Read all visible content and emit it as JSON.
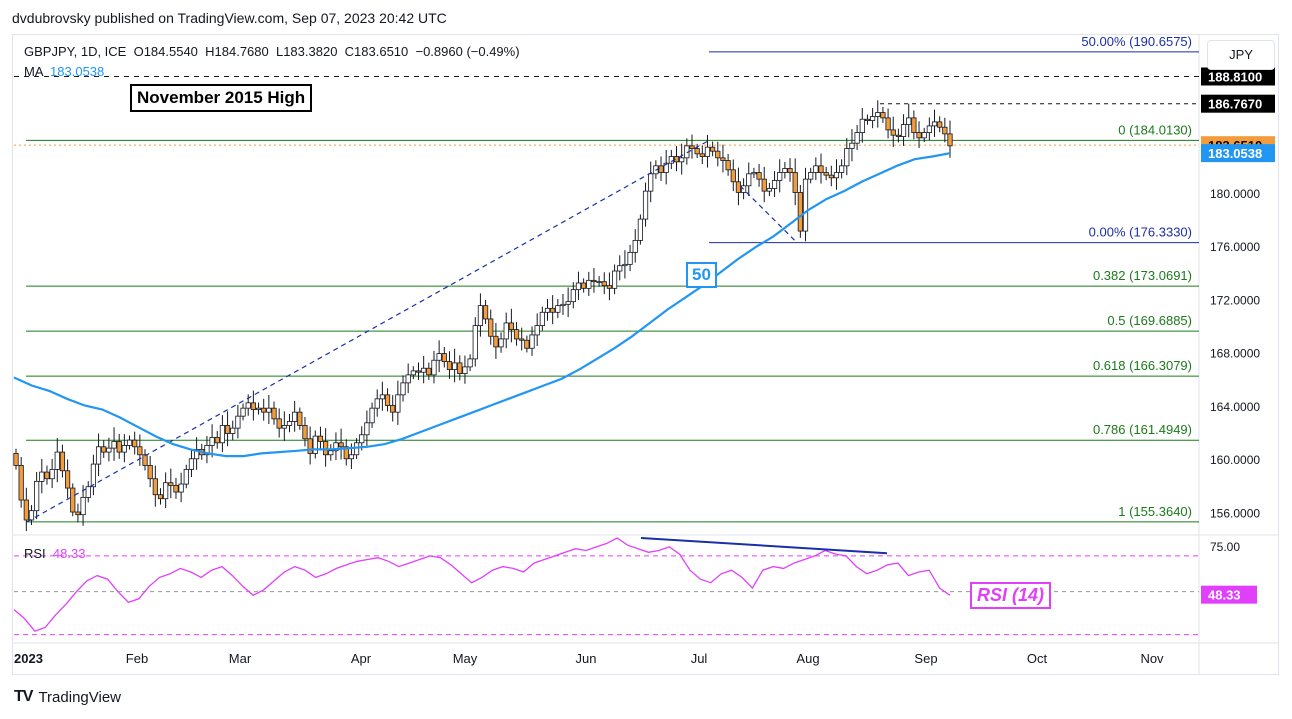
{
  "header": {
    "publisher_line": "dvdubrovsky published on TradingView.com, Sep 07, 2023 20:42 UTC"
  },
  "legend": {
    "symbol_line": "GBPJPY, 1D, ICE  O184.5540  H184.7680  L183.3820  C183.6510  −0.8960 (−0.49%)",
    "ma_label": "MA",
    "ma_value": "183.0538",
    "rsi_label": "RSI",
    "rsi_value": "48.33"
  },
  "currency": "JPY",
  "annotations": {
    "november_high": "November 2015 High",
    "rsi_title": "RSI (14)",
    "ma_period": "50"
  },
  "footer": {
    "logo": "TV",
    "brand": "TradingView"
  },
  "colors": {
    "up_candle": "#ffffff",
    "down_candle": "#f39c3c",
    "candle_outline": "#131722",
    "ma": "#2196f3",
    "rsi": "#e040fb",
    "fib": "#1b7a1b",
    "trend": "#1a2fa8",
    "price_tag": "#f39c3c"
  },
  "chart_data": [
    {
      "type": "candlestick",
      "title": "",
      "xlabel": "",
      "ylabel": "",
      "ylim": [
        154.6,
        191.4
      ],
      "x_tick_labels": [
        "2023",
        "Feb",
        "Mar",
        "Apr",
        "May",
        "Jun",
        "Jul",
        "Aug",
        "Sep",
        "Oct",
        "Nov"
      ],
      "y_ticks": [
        156,
        160,
        164,
        168,
        172,
        176,
        180
      ],
      "y_tick_labels": [
        "156.0000",
        "160.0000",
        "164.0000",
        "168.0000",
        "172.0000",
        "176.0000",
        "180.0000"
      ],
      "price_tags": [
        {
          "label": "188.8100",
          "value": 188.81
        },
        {
          "label": "186.7670",
          "value": 186.767
        },
        {
          "label": "183.6510",
          "value": 183.651
        },
        {
          "label": "183.0538",
          "value": 183.0538
        }
      ],
      "fib_levels": [
        {
          "label": "50.00% (190.6575)",
          "value": 190.6575
        },
        {
          "label": "0 (184.0130)",
          "value": 184.013
        },
        {
          "label": "0.00% (176.3330)",
          "value": 176.333
        },
        {
          "label": "0.382 (173.0691)",
          "value": 173.0691
        },
        {
          "label": "0.5 (169.6885)",
          "value": 169.6885
        },
        {
          "label": "0.618 (166.3079)",
          "value": 166.3079
        },
        {
          "label": "0.786 (161.4949)",
          "value": 161.4949
        },
        {
          "label": "1 (155.3640)",
          "value": 155.364
        }
      ],
      "horizontal_levels": [
        188.81,
        186.767
      ],
      "ohlc_path": [
        159.6,
        157.0,
        155.5,
        156.2,
        158.4,
        159.1,
        158.6,
        159.3,
        160.6,
        159.2,
        157.9,
        156.1,
        155.9,
        157.2,
        158.0,
        159.7,
        161.0,
        160.6,
        160.9,
        161.4,
        160.6,
        161.1,
        161.5,
        161.0,
        160.4,
        159.6,
        158.6,
        157.4,
        157.1,
        158.3,
        158.1,
        157.6,
        158.2,
        159.3,
        160.1,
        160.8,
        160.4,
        161.1,
        161.7,
        161.3,
        162.6,
        162.0,
        162.4,
        163.3,
        163.9,
        164.3,
        163.8,
        163.9,
        163.6,
        163.9,
        163.1,
        162.4,
        162.6,
        162.9,
        163.6,
        162.6,
        161.6,
        160.5,
        161.8,
        161.4,
        160.4,
        160.7,
        161.3,
        161.0,
        160.1,
        160.4,
        161.3,
        161.9,
        162.8,
        163.9,
        164.6,
        164.9,
        164.1,
        163.6,
        164.9,
        165.8,
        166.4,
        166.7,
        166.6,
        166.9,
        166.4,
        167.5,
        168.0,
        167.4,
        166.8,
        167.3,
        166.5,
        167.0,
        167.6,
        170.1,
        171.6,
        170.6,
        169.3,
        168.5,
        169.1,
        170.3,
        169.8,
        169.1,
        169.0,
        168.4,
        169.4,
        170.1,
        171.1,
        171.4,
        171.1,
        171.6,
        171.7,
        171.9,
        172.8,
        173.3,
        172.9,
        173.5,
        173.4,
        173.4,
        173.1,
        172.9,
        174.2,
        174.6,
        174.7,
        175.6,
        176.5,
        178.1,
        180.2,
        181.5,
        182.1,
        181.6,
        182.3,
        182.8,
        182.4,
        182.7,
        183.6,
        183.4,
        183.0,
        182.8,
        183.5,
        183.2,
        182.7,
        182.5,
        181.8,
        180.9,
        180.1,
        180.6,
        181.5,
        181.6,
        181.1,
        180.2,
        180.4,
        181.0,
        181.6,
        181.9,
        181.6,
        180.1,
        177.2,
        181.1,
        181.6,
        182.1,
        181.6,
        181.4,
        181.2,
        181.6,
        182.1,
        183.4,
        183.8,
        184.6,
        185.6,
        185.5,
        185.8,
        186.1,
        185.7,
        184.8,
        184.4,
        184.3,
        185.2,
        185.7,
        184.6,
        184.2,
        184.6,
        185.1,
        185.4,
        185.0,
        184.5,
        183.6
      ],
      "series": [
        {
          "name": "MA",
          "type": "line",
          "values": [
            166.2,
            165.6,
            165.2,
            164.6,
            164.1,
            163.8,
            163.2,
            162.5,
            161.8,
            161.2,
            160.8,
            160.5,
            160.3,
            160.3,
            160.5,
            160.6,
            160.7,
            160.8,
            160.8,
            160.9,
            161.0,
            161.2,
            161.6,
            162.1,
            162.6,
            163.1,
            163.6,
            164.1,
            164.6,
            165.1,
            165.6,
            166.1,
            166.8,
            167.6,
            168.4,
            169.3,
            170.3,
            171.3,
            172.2,
            173.1,
            174.1,
            175.1,
            176.0,
            176.8,
            177.8,
            178.8,
            179.6,
            180.2,
            180.9,
            181.5,
            182.1,
            182.6,
            182.8,
            183.05
          ]
        },
        {
          "name": "RSI",
          "type": "line",
          "ylim": [
            23,
            80
          ],
          "values": [
            40,
            35,
            28,
            30,
            37,
            43,
            50,
            56,
            59,
            57,
            50,
            44,
            46,
            53,
            58,
            60,
            63,
            61,
            58,
            62,
            64,
            59,
            53,
            48,
            51,
            56,
            61,
            64,
            62,
            58,
            60,
            63,
            65,
            67,
            68,
            69,
            67,
            64,
            66,
            68,
            70,
            69,
            65,
            60,
            55,
            58,
            62,
            64,
            63,
            61,
            66,
            68,
            70,
            72,
            74,
            73,
            75,
            77,
            80,
            76,
            74,
            72,
            73,
            75,
            71,
            62,
            57,
            55,
            60,
            62,
            58,
            52,
            62,
            64,
            63,
            66,
            68,
            70,
            73,
            71,
            70,
            64,
            60,
            62,
            65,
            66,
            59,
            61,
            62,
            52,
            48
          ]
        }
      ],
      "rsi_y_ticks": [
        75
      ],
      "rsi_y_tick_labels": [
        "75.00"
      ]
    }
  ]
}
